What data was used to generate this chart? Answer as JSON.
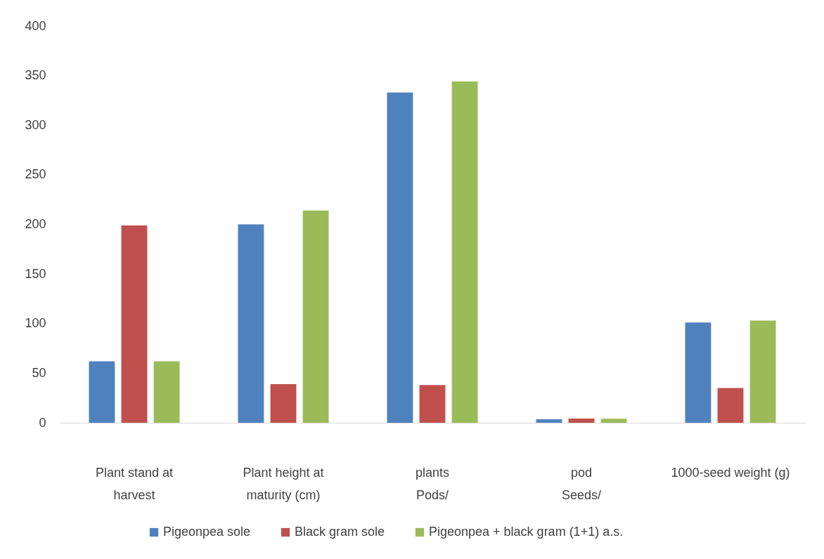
{
  "chart_data": {
    "type": "bar",
    "categories": [
      "Plant stand at\nharvest",
      "Plant height at\nmaturity (cm)",
      "plants\nPods/",
      "pod\nSeeds/",
      "1000-seed weight (g)"
    ],
    "series": [
      {
        "name": "Pigeonpea sole",
        "color": "#4f81bd",
        "values": [
          62,
          200,
          333,
          3.5,
          101
        ]
      },
      {
        "name": "Black gram sole",
        "color": "#c0504d",
        "values": [
          199,
          39,
          38,
          4.2,
          35
        ]
      },
      {
        "name": "Pigeonpea + black gram (1+1) a.s.",
        "color": "#9bbb59",
        "values": [
          62,
          214,
          344,
          4,
          103
        ]
      }
    ],
    "ylim": [
      0,
      400
    ],
    "yticks": [
      0,
      50,
      100,
      150,
      200,
      250,
      300,
      350,
      400
    ],
    "grid": false,
    "legend": "bottom"
  }
}
